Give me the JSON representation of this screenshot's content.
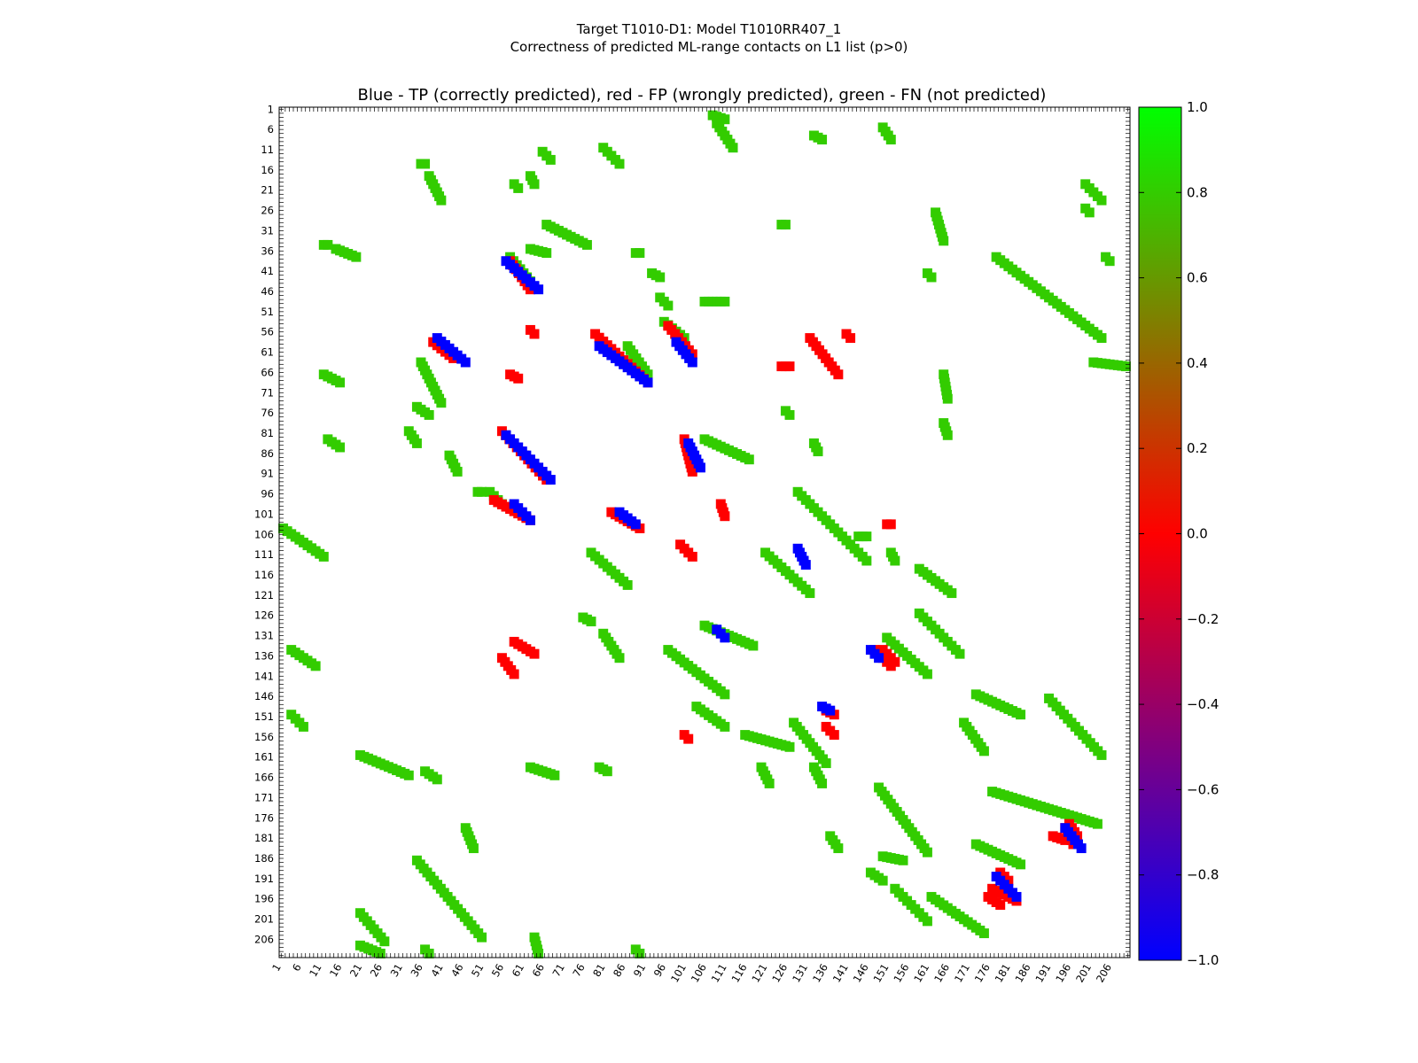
{
  "figure": {
    "title_line1": "Target T1010-D1: Model T1010RR407_1",
    "title_line2": "Correctness of predicted ML-range contacts on L1 list (p>0)"
  },
  "chart_data": {
    "type": "heatmap",
    "title": "Blue - TP (correctly predicted), red - FP (wrongly predicted), green - FN (not predicted)",
    "axis_range": [
      1,
      210
    ],
    "x_ticks": [
      "1",
      "6",
      "11",
      "16",
      "21",
      "26",
      "31",
      "36",
      "41",
      "46",
      "51",
      "56",
      "61",
      "66",
      "71",
      "76",
      "81",
      "86",
      "91",
      "96",
      "101",
      "106",
      "111",
      "116",
      "121",
      "126",
      "131",
      "136",
      "141",
      "146",
      "151",
      "156",
      "161",
      "166",
      "171",
      "176",
      "181",
      "186",
      "191",
      "196",
      "201",
      "206"
    ],
    "y_ticks": [
      "1",
      "6",
      "11",
      "16",
      "21",
      "26",
      "31",
      "36",
      "41",
      "46",
      "51",
      "56",
      "61",
      "66",
      "71",
      "76",
      "81",
      "86",
      "91",
      "96",
      "101",
      "106",
      "111",
      "116",
      "121",
      "126",
      "131",
      "136",
      "141",
      "146",
      "151",
      "156",
      "161",
      "166",
      "171",
      "176",
      "181",
      "186",
      "191",
      "196",
      "201",
      "206"
    ],
    "colorbar": {
      "min": -1.0,
      "max": 1.0,
      "ticks": [
        "1.0",
        "0.8",
        "0.6",
        "0.4",
        "0.2",
        "0.0",
        "−0.2",
        "−0.4",
        "−0.6",
        "−0.8",
        "−1.0"
      ],
      "gradient_colors": [
        "#0000ff",
        "#ff0000",
        "#00ff00"
      ]
    },
    "categories": {
      "TP": {
        "value": -1.0,
        "color": "#0000ff"
      },
      "FP": {
        "value": 0.0,
        "color": "#ff0000"
      },
      "FN": {
        "value": 0.8,
        "color": "#33cc00"
      }
    },
    "fn_segments": [
      [
        107,
        2,
        110,
        3
      ],
      [
        108,
        4,
        112,
        10
      ],
      [
        132,
        7,
        134,
        8
      ],
      [
        149,
        5,
        151,
        8
      ],
      [
        65,
        11,
        67,
        13
      ],
      [
        80,
        10,
        84,
        14
      ],
      [
        62,
        17,
        63,
        19
      ],
      [
        35,
        14,
        36,
        14
      ],
      [
        37,
        17,
        40,
        23
      ],
      [
        58,
        19,
        59,
        20
      ],
      [
        199,
        19,
        203,
        23
      ],
      [
        199,
        25,
        200,
        26
      ],
      [
        162,
        26,
        164,
        33
      ],
      [
        124,
        29,
        125,
        29
      ],
      [
        66,
        29,
        76,
        34
      ],
      [
        14,
        35,
        19,
        37
      ],
      [
        11,
        34,
        12,
        34
      ],
      [
        62,
        35,
        66,
        36
      ],
      [
        57,
        37,
        62,
        43
      ],
      [
        88,
        36,
        89,
        36
      ],
      [
        92,
        41,
        94,
        42
      ],
      [
        177,
        37,
        203,
        57
      ],
      [
        204,
        37,
        205,
        38
      ],
      [
        94,
        47,
        96,
        49
      ],
      [
        105,
        48,
        110,
        48
      ],
      [
        160,
        41,
        161,
        42
      ],
      [
        201,
        63,
        209,
        64
      ],
      [
        35,
        63,
        40,
        73
      ],
      [
        11,
        66,
        15,
        68
      ],
      [
        34,
        74,
        37,
        76
      ],
      [
        32,
        80,
        34,
        83
      ],
      [
        12,
        82,
        15,
        84
      ],
      [
        42,
        86,
        44,
        90
      ],
      [
        164,
        66,
        165,
        72
      ],
      [
        164,
        78,
        165,
        81
      ],
      [
        105,
        82,
        116,
        87
      ],
      [
        125,
        75,
        126,
        76
      ],
      [
        132,
        83,
        133,
        85
      ],
      [
        95,
        53,
        100,
        57
      ],
      [
        86,
        59,
        91,
        66
      ],
      [
        52,
        95,
        55,
        98
      ],
      [
        49,
        95,
        50,
        95
      ],
      [
        128,
        95,
        145,
        112
      ],
      [
        1,
        104,
        11,
        111
      ],
      [
        143,
        106,
        145,
        106
      ],
      [
        151,
        110,
        152,
        112
      ],
      [
        77,
        110,
        86,
        118
      ],
      [
        120,
        110,
        131,
        120
      ],
      [
        158,
        114,
        166,
        120
      ],
      [
        75,
        126,
        77,
        127
      ],
      [
        80,
        130,
        84,
        136
      ],
      [
        158,
        125,
        168,
        135
      ],
      [
        150,
        131,
        160,
        140
      ],
      [
        3,
        134,
        9,
        138
      ],
      [
        96,
        134,
        110,
        145
      ],
      [
        105,
        128,
        117,
        133
      ],
      [
        3,
        150,
        6,
        153
      ],
      [
        103,
        148,
        110,
        153
      ],
      [
        115,
        155,
        126,
        158
      ],
      [
        127,
        152,
        135,
        162
      ],
      [
        132,
        163,
        134,
        167
      ],
      [
        119,
        163,
        121,
        167
      ],
      [
        20,
        160,
        32,
        165
      ],
      [
        36,
        164,
        39,
        166
      ],
      [
        62,
        163,
        68,
        165
      ],
      [
        79,
        163,
        81,
        164
      ],
      [
        148,
        168,
        160,
        184
      ],
      [
        136,
        180,
        138,
        183
      ],
      [
        149,
        185,
        154,
        186
      ],
      [
        172,
        145,
        183,
        150
      ],
      [
        190,
        146,
        203,
        160
      ],
      [
        169,
        152,
        174,
        159
      ],
      [
        176,
        169,
        202,
        177
      ],
      [
        172,
        182,
        183,
        187
      ],
      [
        146,
        189,
        149,
        191
      ],
      [
        152,
        193,
        160,
        201
      ],
      [
        161,
        195,
        174,
        204
      ],
      [
        34,
        186,
        50,
        205
      ],
      [
        46,
        178,
        48,
        183
      ],
      [
        20,
        199,
        26,
        206
      ],
      [
        20,
        207,
        25,
        209
      ],
      [
        63,
        205,
        64,
        209
      ],
      [
        88,
        208,
        89,
        209
      ],
      [
        36,
        208,
        37,
        209
      ]
    ],
    "tp_segments": [
      [
        56,
        38,
        64,
        45
      ],
      [
        39,
        57,
        46,
        63
      ],
      [
        79,
        59,
        91,
        68
      ],
      [
        98,
        58,
        102,
        63
      ],
      [
        56,
        81,
        67,
        92
      ],
      [
        58,
        98,
        62,
        102
      ],
      [
        84,
        100,
        88,
        103
      ],
      [
        101,
        83,
        104,
        89
      ],
      [
        128,
        109,
        130,
        113
      ],
      [
        108,
        129,
        110,
        131
      ],
      [
        146,
        134,
        148,
        136
      ],
      [
        134,
        148,
        136,
        149
      ],
      [
        194,
        178,
        198,
        183
      ],
      [
        177,
        190,
        182,
        195
      ]
    ],
    "fp_segments": [
      [
        57,
        38,
        62,
        45
      ],
      [
        38,
        58,
        43,
        62
      ],
      [
        78,
        56,
        91,
        68
      ],
      [
        96,
        54,
        102,
        61
      ],
      [
        55,
        80,
        66,
        92
      ],
      [
        53,
        97,
        62,
        102
      ],
      [
        82,
        100,
        89,
        104
      ],
      [
        100,
        82,
        102,
        90
      ],
      [
        131,
        57,
        138,
        66
      ],
      [
        124,
        64,
        126,
        64
      ],
      [
        57,
        66,
        59,
        67
      ],
      [
        99,
        108,
        102,
        111
      ],
      [
        109,
        98,
        110,
        101
      ],
      [
        140,
        56,
        141,
        57
      ],
      [
        62,
        55,
        63,
        56
      ],
      [
        58,
        132,
        63,
        135
      ],
      [
        55,
        136,
        58,
        140
      ],
      [
        150,
        103,
        151,
        103
      ],
      [
        100,
        155,
        101,
        156
      ],
      [
        135,
        149,
        137,
        150
      ],
      [
        135,
        153,
        137,
        155
      ],
      [
        147,
        134,
        151,
        138
      ],
      [
        149,
        134,
        152,
        137
      ],
      [
        194,
        178,
        196,
        182
      ],
      [
        191,
        180,
        194,
        181
      ],
      [
        176,
        193,
        182,
        196
      ],
      [
        178,
        189,
        180,
        191
      ],
      [
        175,
        195,
        178,
        197
      ],
      [
        195,
        177,
        197,
        180
      ]
    ]
  }
}
